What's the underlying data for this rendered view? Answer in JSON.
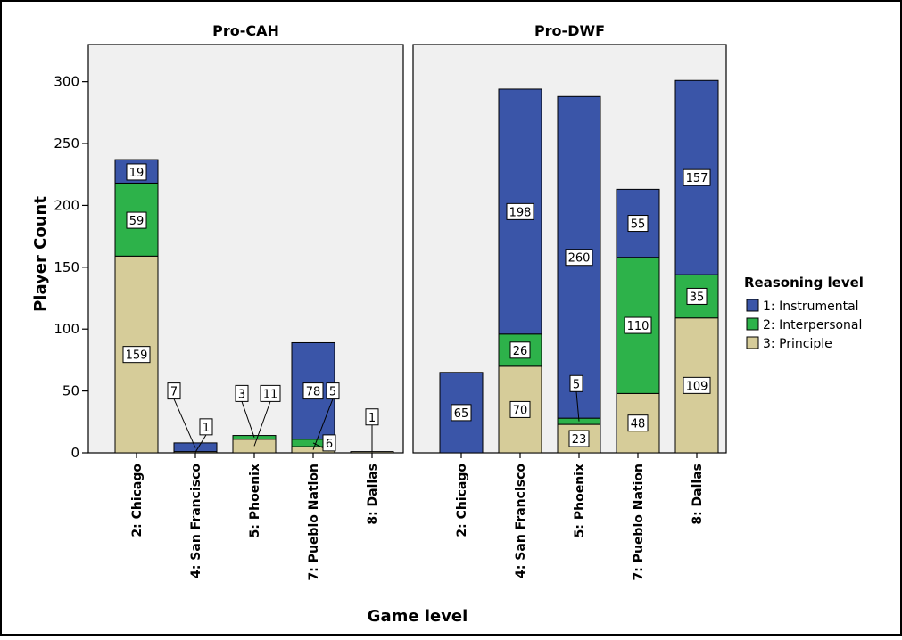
{
  "chart_data": {
    "type": "bar",
    "stacked": true,
    "ylabel": "Player Count",
    "xlabel": "Game level",
    "ylim": [
      0,
      330
    ],
    "yticks": [
      0,
      50,
      100,
      150,
      200,
      250,
      300
    ],
    "grid": false,
    "legend": {
      "title": "Reasoning level",
      "placement": "right",
      "entries": [
        {
          "name": "1: Instrumental",
          "color": "#3a55a8"
        },
        {
          "name": "2: Interpersonal",
          "color": "#2db24a"
        },
        {
          "name": "3: Principle",
          "color": "#d6cc99"
        }
      ]
    },
    "panels": [
      {
        "title": "Pro-CAH",
        "categories": [
          "2: Chicago",
          "4: San Francisco",
          "5: Phoenix",
          "7: Pueblo Nation",
          "8: Dallas"
        ],
        "series": [
          {
            "name": "3: Principle",
            "values": [
              159,
              1,
              11,
              5,
              1
            ]
          },
          {
            "name": "2: Interpersonal",
            "values": [
              59,
              0,
              3,
              6,
              0
            ]
          },
          {
            "name": "1: Instrumental",
            "values": [
              19,
              7,
              0,
              78,
              0
            ]
          }
        ],
        "labels": [
          {
            "text": "159",
            "category": 0,
            "y": 79.5
          },
          {
            "text": "59",
            "category": 0,
            "y": 188
          },
          {
            "text": "19",
            "category": 0,
            "y": 227
          },
          {
            "text": "7",
            "category": 1,
            "y": 50,
            "dx": -24,
            "leader_to_y": 4
          },
          {
            "text": "1",
            "category": 1,
            "y": 21,
            "dx": 12,
            "leader_to_y": 0.5
          },
          {
            "text": "3",
            "category": 2,
            "y": 48,
            "dx": -14,
            "leader_to_y": 12.5
          },
          {
            "text": "11",
            "category": 2,
            "y": 48,
            "dx": 18,
            "leader_to_y": 5.5
          },
          {
            "text": "78",
            "category": 3,
            "y": 50
          },
          {
            "text": "5",
            "category": 3,
            "y": 50,
            "dx": 22,
            "leader_to_y": 2.5
          },
          {
            "text": "6",
            "category": 3,
            "y": 8,
            "dx": 18,
            "leader_to_y": 8
          },
          {
            "text": "1",
            "category": 4,
            "y": 29,
            "dx": 0,
            "leader_to_y": 0.5
          }
        ]
      },
      {
        "title": "Pro-DWF",
        "categories": [
          "2: Chicago",
          "4: San Francisco",
          "5: Phoenix",
          "7: Pueblo Nation",
          "8: Dallas"
        ],
        "series": [
          {
            "name": "3: Principle",
            "values": [
              0,
              70,
              23,
              48,
              109
            ]
          },
          {
            "name": "2: Interpersonal",
            "values": [
              0,
              26,
              5,
              110,
              35
            ]
          },
          {
            "name": "1: Instrumental",
            "values": [
              65,
              198,
              260,
              55,
              157
            ]
          }
        ],
        "labels": [
          {
            "text": "65",
            "category": 0,
            "y": 32.5
          },
          {
            "text": "70",
            "category": 1,
            "y": 35
          },
          {
            "text": "26",
            "category": 1,
            "y": 83
          },
          {
            "text": "198",
            "category": 1,
            "y": 195
          },
          {
            "text": "23",
            "category": 2,
            "y": 11.5
          },
          {
            "text": "5",
            "category": 2,
            "y": 56,
            "dx": -3,
            "leader_to_y": 25.5
          },
          {
            "text": "260",
            "category": 2,
            "y": 158
          },
          {
            "text": "48",
            "category": 3,
            "y": 24
          },
          {
            "text": "110",
            "category": 3,
            "y": 103
          },
          {
            "text": "55",
            "category": 3,
            "y": 185.5
          },
          {
            "text": "109",
            "category": 4,
            "y": 54.5
          },
          {
            "text": "35",
            "category": 4,
            "y": 126.5
          },
          {
            "text": "157",
            "category": 4,
            "y": 222.5
          }
        ]
      }
    ]
  }
}
